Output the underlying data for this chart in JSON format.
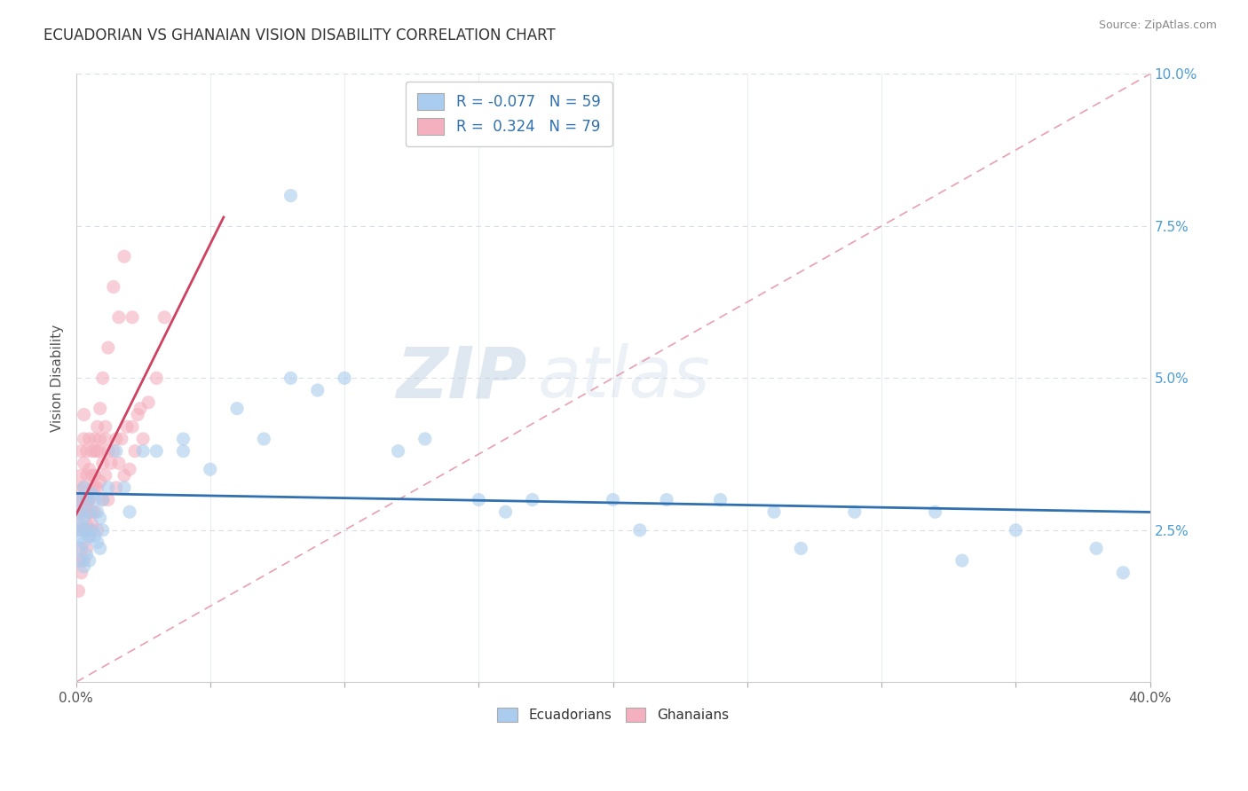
{
  "title": "ECUADORIAN VS GHANAIAN VISION DISABILITY CORRELATION CHART",
  "source": "Source: ZipAtlas.com",
  "ylabel": "Vision Disability",
  "xlim": [
    0.0,
    0.4
  ],
  "ylim": [
    0.0,
    0.1
  ],
  "blue_R": "-0.077",
  "blue_N": "59",
  "pink_R": "0.324",
  "pink_N": "79",
  "blue_color": "#aaccee",
  "pink_color": "#f4b0be",
  "blue_line_color": "#3070b0",
  "pink_line_color": "#d04060",
  "ref_line_color": "#e8a0b0",
  "grid_color": "#d8dce8",
  "background_color": "#ffffff",
  "watermark_color": "#ccdcee",
  "ecuadorians_x": [
    0.001,
    0.001,
    0.001,
    0.002,
    0.002,
    0.002,
    0.002,
    0.003,
    0.003,
    0.003,
    0.003,
    0.004,
    0.004,
    0.004,
    0.005,
    0.005,
    0.005,
    0.006,
    0.006,
    0.007,
    0.007,
    0.008,
    0.008,
    0.009,
    0.009,
    0.01,
    0.01,
    0.012,
    0.015,
    0.018,
    0.02,
    0.025,
    0.03,
    0.04,
    0.05,
    0.06,
    0.07,
    0.08,
    0.09,
    0.1,
    0.12,
    0.13,
    0.15,
    0.17,
    0.2,
    0.22,
    0.24,
    0.26,
    0.29,
    0.32,
    0.35,
    0.38,
    0.04,
    0.08,
    0.16,
    0.21,
    0.27,
    0.33,
    0.39
  ],
  "ecuadorians_y": [
    0.03,
    0.025,
    0.022,
    0.028,
    0.026,
    0.024,
    0.02,
    0.032,
    0.027,
    0.023,
    0.019,
    0.03,
    0.025,
    0.021,
    0.028,
    0.024,
    0.02,
    0.031,
    0.025,
    0.03,
    0.024,
    0.028,
    0.023,
    0.027,
    0.022,
    0.03,
    0.025,
    0.032,
    0.038,
    0.032,
    0.028,
    0.038,
    0.038,
    0.04,
    0.035,
    0.045,
    0.04,
    0.05,
    0.048,
    0.05,
    0.038,
    0.04,
    0.03,
    0.03,
    0.03,
    0.03,
    0.03,
    0.028,
    0.028,
    0.028,
    0.025,
    0.022,
    0.038,
    0.08,
    0.028,
    0.025,
    0.022,
    0.02,
    0.018
  ],
  "ghanaians_x": [
    0.001,
    0.001,
    0.001,
    0.001,
    0.002,
    0.002,
    0.002,
    0.002,
    0.003,
    0.003,
    0.003,
    0.003,
    0.003,
    0.004,
    0.004,
    0.004,
    0.004,
    0.005,
    0.005,
    0.005,
    0.005,
    0.006,
    0.006,
    0.006,
    0.007,
    0.007,
    0.007,
    0.008,
    0.008,
    0.008,
    0.009,
    0.009,
    0.01,
    0.01,
    0.011,
    0.011,
    0.012,
    0.012,
    0.013,
    0.014,
    0.015,
    0.015,
    0.016,
    0.017,
    0.018,
    0.019,
    0.02,
    0.021,
    0.022,
    0.023,
    0.025,
    0.027,
    0.03,
    0.033,
    0.001,
    0.002,
    0.003,
    0.004,
    0.005,
    0.006,
    0.007,
    0.008,
    0.009,
    0.01,
    0.012,
    0.014,
    0.016,
    0.018,
    0.021,
    0.024,
    0.001,
    0.002,
    0.003,
    0.004,
    0.005,
    0.006,
    0.007,
    0.009,
    0.011
  ],
  "ghanaians_y": [
    0.028,
    0.03,
    0.032,
    0.026,
    0.03,
    0.034,
    0.038,
    0.025,
    0.032,
    0.036,
    0.04,
    0.044,
    0.028,
    0.03,
    0.034,
    0.038,
    0.026,
    0.03,
    0.035,
    0.04,
    0.024,
    0.032,
    0.038,
    0.026,
    0.034,
    0.04,
    0.028,
    0.032,
    0.038,
    0.025,
    0.033,
    0.04,
    0.03,
    0.036,
    0.034,
    0.042,
    0.03,
    0.038,
    0.036,
    0.038,
    0.032,
    0.04,
    0.036,
    0.04,
    0.034,
    0.042,
    0.035,
    0.042,
    0.038,
    0.044,
    0.04,
    0.046,
    0.05,
    0.06,
    0.02,
    0.022,
    0.025,
    0.028,
    0.03,
    0.034,
    0.038,
    0.042,
    0.045,
    0.05,
    0.055,
    0.065,
    0.06,
    0.07,
    0.06,
    0.045,
    0.015,
    0.018,
    0.02,
    0.022,
    0.025,
    0.028,
    0.032,
    0.038,
    0.04
  ]
}
